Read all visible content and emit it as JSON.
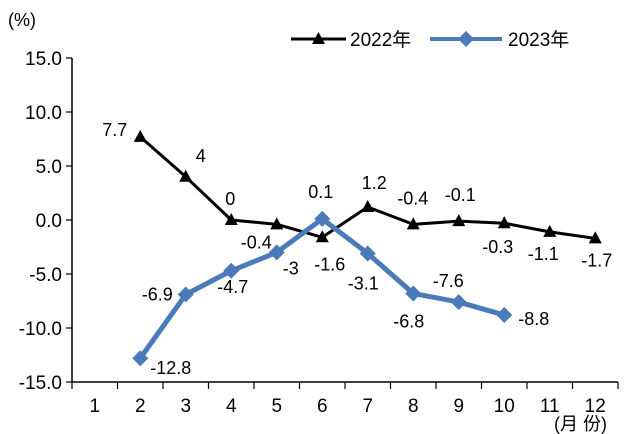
{
  "chart_data": {
    "type": "line",
    "y_unit_label": "(%)",
    "x_unit_label": "(月 份)",
    "ylim": [
      -15,
      15
    ],
    "yticks": [
      "15.0",
      "10.0",
      "5.0",
      "0.0",
      "-5.0",
      "-10.0",
      "-15.0"
    ],
    "categories": [
      "1",
      "2",
      "3",
      "4",
      "5",
      "6",
      "7",
      "8",
      "9",
      "10",
      "11",
      "12"
    ],
    "grid": false,
    "legend_position": "top-right",
    "series": [
      {
        "name": "2022年",
        "color": "#000000",
        "marker": "triangle",
        "x": [
          2,
          3,
          4,
          5,
          6,
          7,
          8,
          9,
          10,
          11,
          12
        ],
        "values": [
          7.7,
          4,
          0,
          -0.4,
          -1.6,
          1.2,
          -0.4,
          -0.1,
          -0.3,
          -1.1,
          -1.7
        ],
        "labels": [
          "7.7",
          "4",
          "0",
          "-0.4",
          "-1.6",
          "1.2",
          "-0.4",
          "-0.1",
          "-0.3",
          "-1.1",
          "-1.7"
        ]
      },
      {
        "name": "2023年",
        "color": "#4a7ab8",
        "marker": "diamond",
        "x": [
          2,
          3,
          4,
          5,
          6,
          7,
          8,
          9,
          10
        ],
        "values": [
          -12.8,
          -6.9,
          -4.7,
          -3,
          0.1,
          -3.1,
          -6.8,
          -7.6,
          -8.8
        ],
        "labels": [
          "-12.8",
          "-6.9",
          "-4.7",
          "-3",
          "0.1",
          "-3.1",
          "-6.8",
          "-7.6",
          "-8.8"
        ]
      }
    ]
  }
}
